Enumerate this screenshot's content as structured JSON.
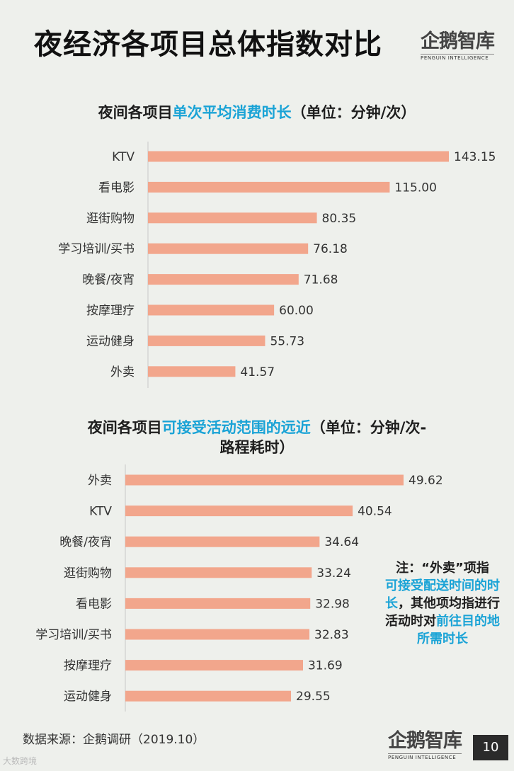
{
  "header": {
    "title": "夜经济各项目总体指数对比",
    "logo_text": "企鹅智库",
    "logo_sub": "PENGUIN INTELLIGENCE"
  },
  "chart1": {
    "title_prefix": "夜间各项目",
    "title_highlight": "单次平均消费时长",
    "title_suffix": "（单位：分钟/次）"
  },
  "chart2": {
    "title_prefix": "夜间各项目",
    "title_highlight": "可接受活动范围的远近",
    "title_suffix": "（单位：分钟/次-",
    "title_line2": "路程耗时）"
  },
  "chart_data": [
    {
      "type": "bar",
      "orientation": "horizontal",
      "title": "夜间各项目单次平均消费时长（单位：分钟/次）",
      "categories": [
        "KTV",
        "看电影",
        "逛街购物",
        "学习培训/买书",
        "晚餐/夜宵",
        "按摩理疗",
        "运动健身",
        "外卖"
      ],
      "values": [
        143.15,
        115.0,
        80.35,
        76.18,
        71.68,
        60.0,
        55.73,
        41.57
      ],
      "labels": [
        "143.15",
        "115.00",
        "80.35",
        "76.18",
        "71.68",
        "60.00",
        "55.73",
        "41.57"
      ],
      "xlim": [
        0,
        143.15
      ],
      "bar_color": "#f2a68c",
      "grid": false,
      "legend": "none"
    },
    {
      "type": "bar",
      "orientation": "horizontal",
      "title": "夜间各项目可接受活动范围的远近（单位：分钟/次-路程耗时）",
      "categories": [
        "外卖",
        "KTV",
        "晚餐/夜宵",
        "逛街购物",
        "看电影",
        "学习培训/买书",
        "按摩理疗",
        "运动健身"
      ],
      "values": [
        49.62,
        40.54,
        34.64,
        33.24,
        32.98,
        32.83,
        31.69,
        29.55
      ],
      "labels": [
        "49.62",
        "40.54",
        "34.64",
        "33.24",
        "32.98",
        "32.83",
        "31.69",
        "29.55"
      ],
      "xlim": [
        0,
        49.62
      ],
      "bar_color": "#f2a68c",
      "grid": false,
      "legend": "none"
    }
  ],
  "note": {
    "line1": "注：“外卖”项指",
    "hl1": "可接受配送时间的时长",
    "mid": "，其他项均指进行活动时对",
    "hl2": "前往目的地所需时长"
  },
  "footer": {
    "source": "数据来源：企鹅调研（2019.10）",
    "page_number": "10",
    "watermark": "大数跨境"
  },
  "colors": {
    "bar": "#f2a68c",
    "highlight": "#1aa3d6",
    "background": "#eef0ec"
  }
}
